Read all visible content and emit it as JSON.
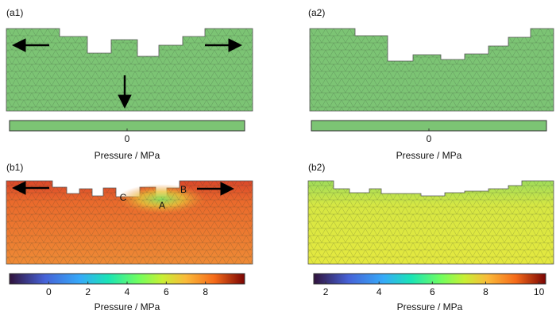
{
  "panels": [
    {
      "label": "(a1)",
      "colorbar": {
        "label": "Pressure / MPa",
        "lim": [
          -1,
          1
        ],
        "ticks": [
          0
        ]
      }
    },
    {
      "label": "(a2)",
      "colorbar": {
        "label": "Pressure / MPa",
        "lim": [
          -1,
          1
        ],
        "ticks": [
          0
        ]
      }
    },
    {
      "label": "(b1)",
      "annotations": [
        "C",
        "B",
        "A"
      ],
      "colorbar": {
        "label": "Pressure / MPa",
        "lim": [
          -2,
          10
        ],
        "ticks": [
          0,
          2,
          4,
          6,
          8
        ]
      }
    },
    {
      "label": "(b2)",
      "colorbar": {
        "label": "Pressure / MPa",
        "lim": [
          1.55,
          10.25
        ],
        "ticks": [
          2,
          4,
          6,
          8,
          10
        ]
      }
    }
  ]
}
